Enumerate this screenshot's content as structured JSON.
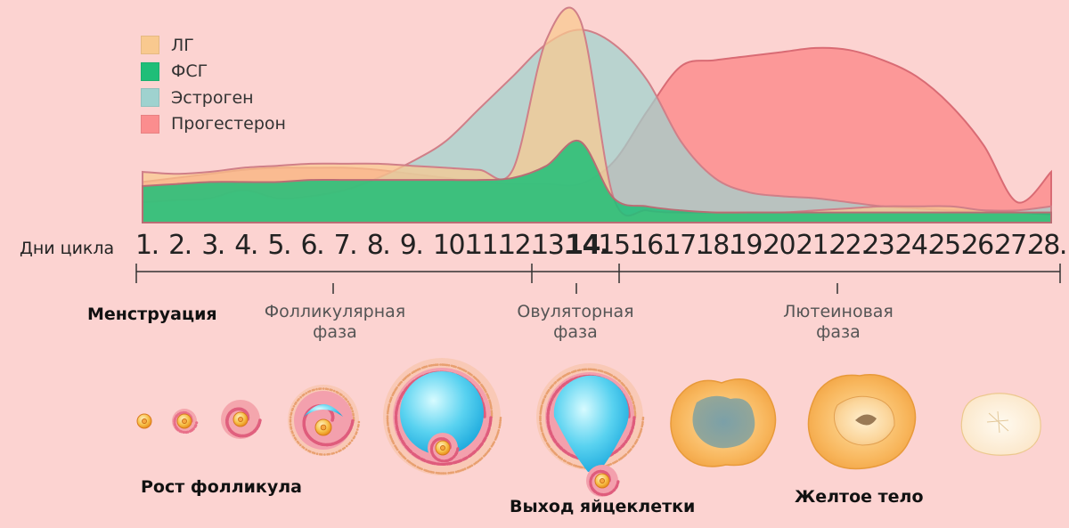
{
  "legend": [
    {
      "label": "ЛГ",
      "color": "#f9c98f"
    },
    {
      "label": "ФСГ",
      "color": "#1fbe78"
    },
    {
      "label": "Эстроген",
      "color": "#9fd2cf"
    },
    {
      "label": "Прогестерон",
      "color": "#fb8d8e"
    }
  ],
  "days_label": "Дни цикла",
  "days": [
    "1.",
    "2.",
    "3.",
    "4.",
    "5.",
    "6.",
    "7.",
    "8.",
    "9.",
    "10.",
    "11.",
    "12.",
    "13.",
    "14.",
    "15.",
    "16.",
    "17.",
    "18.",
    "19.",
    "20.",
    "21.",
    "22.",
    "23.",
    "24.",
    "25.",
    "26.",
    "27.",
    "28."
  ],
  "active_day": "14.",
  "phases": {
    "menstruation": "Менструация",
    "follicular_line1": "Фолликулярная",
    "follicular_line2": "фаза",
    "ovulatory_line1": "Овуляторная",
    "ovulatory_line2": "фаза",
    "luteal_line1": "Лютеиновая",
    "luteal_line2": "фаза"
  },
  "stages": {
    "follicle_growth": "Рост фолликула",
    "egg_release": "Выход яйцеклетки",
    "corpus_luteum": "Желтое тело"
  },
  "chart_data": {
    "type": "area",
    "x_label": "Дни цикла",
    "x": [
      1,
      2,
      3,
      4,
      5,
      6,
      7,
      8,
      9,
      10,
      11,
      12,
      13,
      14,
      15,
      16,
      17,
      18,
      19,
      20,
      21,
      22,
      23,
      24,
      25,
      26,
      27,
      28
    ],
    "y_range": [
      0,
      100
    ],
    "series": [
      {
        "name": "Прогестерон",
        "values": [
          20,
          22,
          24,
          26,
          27,
          27,
          27,
          26,
          24,
          22,
          20,
          19,
          19,
          19,
          30,
          55,
          77,
          80,
          82,
          84,
          86,
          85,
          80,
          72,
          58,
          38,
          10,
          25
        ]
      },
      {
        "name": "Эстроген",
        "values": [
          10,
          11,
          12,
          16,
          12,
          13,
          16,
          22,
          30,
          40,
          56,
          72,
          88,
          95,
          88,
          70,
          40,
          22,
          15,
          13,
          12,
          10,
          8,
          7,
          6,
          6,
          6,
          8
        ]
      },
      {
        "name": "ЛГ",
        "values": [
          25,
          24,
          25,
          27,
          28,
          29,
          29,
          29,
          28,
          27,
          26,
          26,
          90,
          100,
          12,
          6,
          5,
          5,
          5,
          5,
          6,
          7,
          8,
          8,
          8,
          6,
          5,
          4
        ]
      },
      {
        "name": "ФСГ",
        "values": [
          18,
          19,
          20,
          20,
          20,
          21,
          21,
          21,
          21,
          21,
          21,
          22,
          28,
          40,
          12,
          8,
          6,
          5,
          5,
          5,
          5,
          5,
          5,
          5,
          5,
          5,
          5,
          5
        ]
      }
    ]
  }
}
